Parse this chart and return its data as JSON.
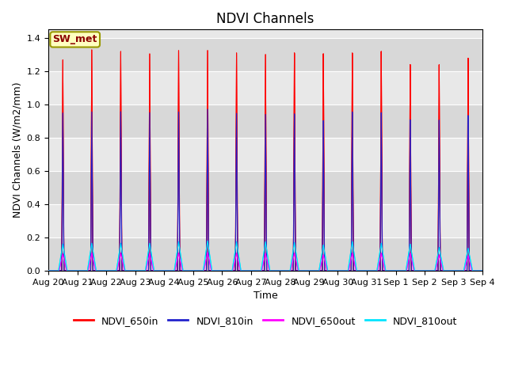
{
  "title": "NDVI Channels",
  "xlabel": "Time",
  "ylabel": "NDVI Channels (W/m2/mm)",
  "ylim": [
    0,
    1.45
  ],
  "background_color": "#e8e8e8",
  "station_label": "SW_met",
  "legend_entries": [
    "NDVI_650in",
    "NDVI_810in",
    "NDVI_650out",
    "NDVI_810out"
  ],
  "line_colors": [
    "#ff0000",
    "#2222cc",
    "#ff00ff",
    "#00e5ff"
  ],
  "num_days": 15,
  "peak_values_650in": [
    1.27,
    1.335,
    1.33,
    1.32,
    1.345,
    1.35,
    1.34,
    1.335,
    1.34,
    1.33,
    1.33,
    1.335,
    1.25,
    1.245,
    1.28
  ],
  "peak_values_810in": [
    0.95,
    0.96,
    0.965,
    0.962,
    0.97,
    0.99,
    0.968,
    0.965,
    0.965,
    0.92,
    0.97,
    0.962,
    0.915,
    0.91,
    0.935
  ],
  "peak_values_650out": [
    0.1,
    0.105,
    0.105,
    0.105,
    0.105,
    0.11,
    0.105,
    0.105,
    0.105,
    0.095,
    0.105,
    0.105,
    0.105,
    0.095,
    0.09
  ],
  "peak_values_810out": [
    0.16,
    0.165,
    0.165,
    0.165,
    0.175,
    0.18,
    0.175,
    0.175,
    0.17,
    0.155,
    0.175,
    0.165,
    0.16,
    0.14,
    0.135
  ],
  "xtick_labels": [
    "Aug 20",
    "Aug 21",
    "Aug 22",
    "Aug 23",
    "Aug 24",
    "Aug 25",
    "Aug 26",
    "Aug 27",
    "Aug 28",
    "Aug 29",
    "Aug 30",
    "Aug 31",
    "Sep 1",
    "Sep 2",
    "Sep 3",
    "Sep 4"
  ],
  "title_fontsize": 12,
  "axis_label_fontsize": 9,
  "tick_fontsize": 8,
  "legend_fontsize": 9,
  "figsize": [
    6.4,
    4.8
  ],
  "dpi": 100
}
